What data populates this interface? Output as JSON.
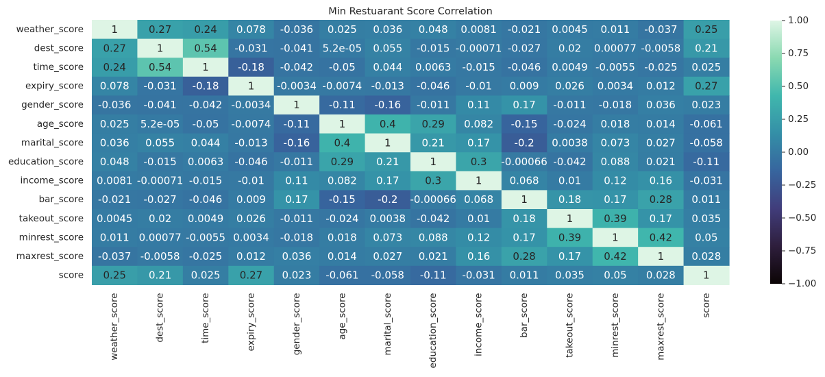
{
  "chart_data": {
    "type": "heatmap",
    "title": "Min Restuarant Score Correlation",
    "row_labels": [
      "weather_score",
      "dest_score",
      "time_score",
      "expiry_score",
      "gender_score",
      "age_score",
      "marital_score",
      "education_score",
      "income_score",
      "bar_score",
      "takeout_score",
      "minrest_score",
      "maxrest_score",
      "score"
    ],
    "col_labels": [
      "weather_score",
      "dest_score",
      "time_score",
      "expiry_score",
      "gender_score",
      "age_score",
      "marital_score",
      "education_score",
      "income_score",
      "bar_score",
      "takeout_score",
      "minrest_score",
      "maxrest_score",
      "score"
    ],
    "values": [
      [
        1,
        0.27,
        0.24,
        0.078,
        -0.036,
        0.025,
        0.036,
        0.048,
        0.0081,
        -0.021,
        0.0045,
        0.011,
        -0.037,
        0.25
      ],
      [
        0.27,
        1,
        0.54,
        -0.031,
        -0.041,
        5.2e-05,
        0.055,
        -0.015,
        -0.00071,
        -0.027,
        0.02,
        0.00077,
        -0.0058,
        0.21
      ],
      [
        0.24,
        0.54,
        1,
        -0.18,
        -0.042,
        -0.05,
        0.044,
        0.0063,
        -0.015,
        -0.046,
        0.0049,
        -0.0055,
        -0.025,
        0.025
      ],
      [
        0.078,
        -0.031,
        -0.18,
        1,
        -0.0034,
        -0.0074,
        -0.013,
        -0.046,
        -0.01,
        0.009,
        0.026,
        0.0034,
        0.012,
        0.27
      ],
      [
        -0.036,
        -0.041,
        -0.042,
        -0.0034,
        1,
        -0.11,
        -0.16,
        -0.011,
        0.11,
        0.17,
        -0.011,
        -0.018,
        0.036,
        0.023
      ],
      [
        0.025,
        5.2e-05,
        -0.05,
        -0.0074,
        -0.11,
        1,
        0.4,
        0.29,
        0.082,
        -0.15,
        -0.024,
        0.018,
        0.014,
        -0.061
      ],
      [
        0.036,
        0.055,
        0.044,
        -0.013,
        -0.16,
        0.4,
        1,
        0.21,
        0.17,
        -0.2,
        0.0038,
        0.073,
        0.027,
        -0.058
      ],
      [
        0.048,
        -0.015,
        0.0063,
        -0.046,
        -0.011,
        0.29,
        0.21,
        1,
        0.3,
        -0.00066,
        -0.042,
        0.088,
        0.021,
        -0.11
      ],
      [
        0.0081,
        -0.00071,
        -0.015,
        -0.01,
        0.11,
        0.082,
        0.17,
        0.3,
        1,
        0.068,
        0.01,
        0.12,
        0.16,
        -0.031
      ],
      [
        -0.021,
        -0.027,
        -0.046,
        0.009,
        0.17,
        -0.15,
        -0.2,
        -0.00066,
        0.068,
        1,
        0.18,
        0.17,
        0.28,
        0.011
      ],
      [
        0.0045,
        0.02,
        0.0049,
        0.026,
        -0.011,
        -0.024,
        0.0038,
        -0.042,
        0.01,
        0.18,
        1,
        0.39,
        0.17,
        0.035
      ],
      [
        0.011,
        0.00077,
        -0.0055,
        0.0034,
        -0.018,
        0.018,
        0.073,
        0.088,
        0.12,
        0.17,
        0.39,
        1,
        0.42,
        0.05
      ],
      [
        -0.037,
        -0.0058,
        -0.025,
        0.012,
        0.036,
        0.014,
        0.027,
        0.021,
        0.16,
        0.28,
        0.17,
        0.42,
        1,
        0.028
      ],
      [
        0.25,
        0.21,
        0.025,
        0.27,
        0.023,
        -0.061,
        -0.058,
        -0.11,
        -0.031,
        0.011,
        0.035,
        0.05,
        0.028,
        1
      ]
    ],
    "cell_labels": [
      [
        "1",
        "0.27",
        "0.24",
        "0.078",
        "-0.036",
        "0.025",
        "0.036",
        "0.048",
        "0.0081",
        "-0.021",
        "0.0045",
        "0.011",
        "-0.037",
        "0.25"
      ],
      [
        "0.27",
        "1",
        "0.54",
        "-0.031",
        "-0.041",
        "5.2e-05",
        "0.055",
        "-0.015",
        "-0.00071",
        "-0.027",
        "0.02",
        "0.00077",
        "-0.0058",
        "0.21"
      ],
      [
        "0.24",
        "0.54",
        "1",
        "-0.18",
        "-0.042",
        "-0.05",
        "0.044",
        "0.0063",
        "-0.015",
        "-0.046",
        "0.0049",
        "-0.0055",
        "-0.025",
        "0.025"
      ],
      [
        "0.078",
        "-0.031",
        "-0.18",
        "1",
        "-0.0034",
        "-0.0074",
        "-0.013",
        "-0.046",
        "-0.01",
        "0.009",
        "0.026",
        "0.0034",
        "0.012",
        "0.27"
      ],
      [
        "-0.036",
        "-0.041",
        "-0.042",
        "-0.0034",
        "1",
        "-0.11",
        "-0.16",
        "-0.011",
        "0.11",
        "0.17",
        "-0.011",
        "-0.018",
        "0.036",
        "0.023"
      ],
      [
        "0.025",
        "5.2e-05",
        "-0.05",
        "-0.0074",
        "-0.11",
        "1",
        "0.4",
        "0.29",
        "0.082",
        "-0.15",
        "-0.024",
        "0.018",
        "0.014",
        "-0.061"
      ],
      [
        "0.036",
        "0.055",
        "0.044",
        "-0.013",
        "-0.16",
        "0.4",
        "1",
        "0.21",
        "0.17",
        "-0.2",
        "0.0038",
        "0.073",
        "0.027",
        "-0.058"
      ],
      [
        "0.048",
        "-0.015",
        "0.0063",
        "-0.046",
        "-0.011",
        "0.29",
        "0.21",
        "1",
        "0.3",
        "-0.00066",
        "-0.042",
        "0.088",
        "0.021",
        "-0.11"
      ],
      [
        "0.0081",
        "-0.00071",
        "-0.015",
        "-0.01",
        "0.11",
        "0.082",
        "0.17",
        "0.3",
        "1",
        "0.068",
        "0.01",
        "0.12",
        "0.16",
        "-0.031"
      ],
      [
        "-0.021",
        "-0.027",
        "-0.046",
        "0.009",
        "0.17",
        "-0.15",
        "-0.2",
        "-0.00066",
        "0.068",
        "1",
        "0.18",
        "0.17",
        "0.28",
        "0.011"
      ],
      [
        "0.0045",
        "0.02",
        "0.0049",
        "0.026",
        "-0.011",
        "-0.024",
        "0.0038",
        "-0.042",
        "0.01",
        "0.18",
        "1",
        "0.39",
        "0.17",
        "0.035"
      ],
      [
        "0.011",
        "0.00077",
        "-0.0055",
        "0.0034",
        "-0.018",
        "0.018",
        "0.073",
        "0.088",
        "0.12",
        "0.17",
        "0.39",
        "1",
        "0.42",
        "0.05"
      ],
      [
        "-0.037",
        "-0.0058",
        "-0.025",
        "0.012",
        "0.036",
        "0.014",
        "0.027",
        "0.021",
        "0.16",
        "0.28",
        "0.17",
        "0.42",
        "1",
        "0.028"
      ],
      [
        "0.25",
        "0.21",
        "0.025",
        "0.27",
        "0.023",
        "-0.061",
        "-0.058",
        "-0.11",
        "-0.031",
        "0.011",
        "0.035",
        "0.05",
        "0.028",
        "1"
      ]
    ],
    "colorbar": {
      "range": [
        -1,
        1
      ],
      "ticks": [
        -1.0,
        -0.75,
        -0.5,
        -0.25,
        0.0,
        0.25,
        0.5,
        0.75,
        1.0
      ],
      "tick_labels": [
        "−1.00",
        "−0.75",
        "−0.50",
        "−0.25",
        "0.00",
        "0.25",
        "0.50",
        "0.75",
        "1.00"
      ],
      "colormap": "mako",
      "colormap_stops": [
        "#0b0405",
        "#2e1e3c",
        "#413d7b",
        "#37659e",
        "#348fa7",
        "#40b7ad",
        "#8ad9b1",
        "#def5e5"
      ]
    },
    "grid": false,
    "legend": "colorbar-right"
  }
}
